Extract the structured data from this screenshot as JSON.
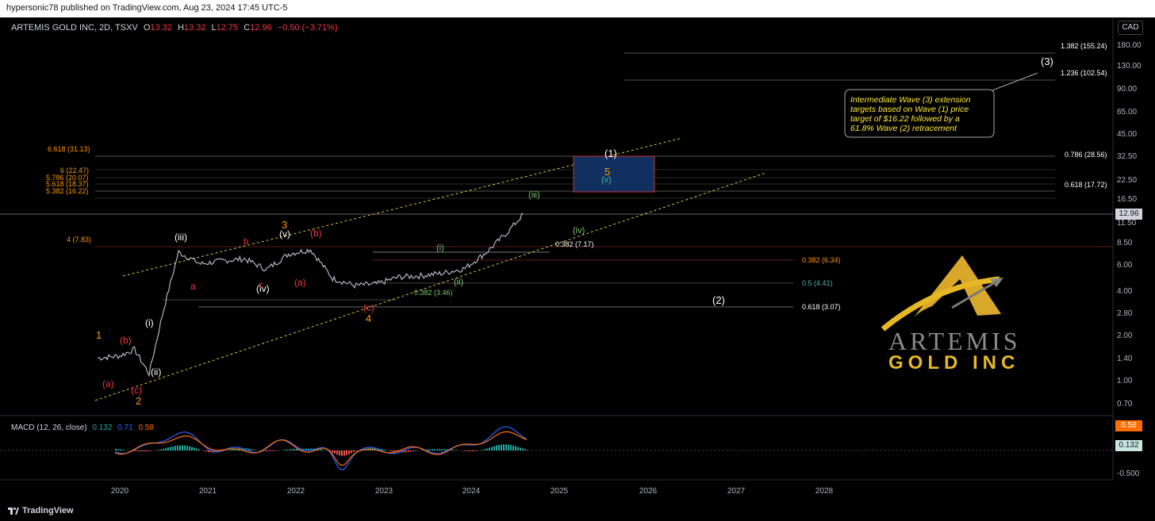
{
  "header": {
    "publisher": "hypersonic78 published on TradingView.com, Aug 23, 2024 17:45 UTC-5"
  },
  "legend": {
    "symbol": "ARTEMIS GOLD INC, 2D, TSXV",
    "o_label": "O",
    "o_value": "13.32",
    "h_label": "H",
    "h_value": "13.32",
    "l_label": "L",
    "l_value": "12.75",
    "c_label": "C",
    "c_value": "12.96",
    "change": "−0.50 (−3.71%)"
  },
  "currency_badge": "CAD",
  "price_badge": "12.96",
  "macd": {
    "label": "MACD (12, 26, close)",
    "v1": "0.132",
    "v2": "0.71",
    "v3": "0.58",
    "badge_signal": "0.58",
    "badge_hist": "0.132"
  },
  "footer": {
    "brand": "TradingView"
  },
  "logo": {
    "line1": "ARTEMIS",
    "line2": "GOLD INC"
  },
  "callout": {
    "text": [
      "Intermediate Wave (3) extension",
      "targets based on Wave (1) price",
      "target of $16.22 followed by a",
      "61.8% Wave (2) retracement"
    ]
  },
  "colors": {
    "white": "#ffffff",
    "orange": "#ff9800",
    "red": "#f23645",
    "green": "#7bc96f",
    "teal": "#4db6ac",
    "yellow": "#e0c040",
    "candles": "#b2b5be",
    "macd_blue": "#2962ff",
    "macd_orange": "#ff6d00"
  },
  "chart_data": {
    "type": "line",
    "title": "ARTEMIS GOLD INC, 2D, TSXV",
    "y_scale": "log",
    "ylim": [
      0.55,
      260
    ],
    "x_ticks": [
      "2020",
      "2021",
      "2022",
      "2023",
      "2024",
      "2025",
      "2026",
      "2027",
      "2028"
    ],
    "y_ticks": [
      "180.00",
      "130.00",
      "90.00",
      "65.00",
      "45.00",
      "32.50",
      "22.50",
      "16.50",
      "11.50",
      "8.50",
      "6.00",
      "4.00",
      "2.80",
      "2.00",
      "1.40",
      "1.00",
      "0.70"
    ],
    "macd_ticks": [
      "-0.500"
    ],
    "series": [
      {
        "name": "ARTEMIS GOLD INC",
        "x": [
          "2019-10",
          "2020-01",
          "2020-03",
          "2020-05",
          "2020-07",
          "2020-09",
          "2020-12",
          "2021-03",
          "2021-06",
          "2021-09",
          "2021-12",
          "2022-03",
          "2022-06",
          "2022-09",
          "2022-12",
          "2023-03",
          "2023-06",
          "2023-09",
          "2023-12",
          "2024-03",
          "2024-06",
          "2024-08"
        ],
        "y": [
          1.4,
          1.45,
          1.6,
          1.1,
          3.0,
          7.2,
          6.0,
          6.3,
          6.5,
          5.5,
          7.0,
          7.5,
          4.8,
          4.3,
          4.4,
          4.9,
          5.0,
          5.2,
          5.6,
          7.2,
          10.0,
          12.96
        ]
      }
    ],
    "fib_levels_left": [
      "6.618 (31.13)",
      "6 (22.47)",
      "5.786 (20.07)",
      "5.618 (18.37)",
      "5.382 (16.22)",
      "4 (7.83)"
    ],
    "fib_levels_right": [
      "1.382 (155.24)",
      "1.236 (102.54)",
      "0.786 (28.56)",
      "0.618 (17.72)",
      "0.382 (6.34)",
      "0.5 (4.41)",
      "0.618 (3.07)",
      "0.382 (7.17)",
      "0.382 (3.46)"
    ],
    "wave_labels": [
      "1",
      "2",
      "3",
      "4",
      "5",
      "(1)",
      "(2)",
      "(3)",
      "(i)",
      "(ii)",
      "(iii)",
      "(iv)",
      "(v)",
      "(a)",
      "(b)",
      "(c)",
      "a",
      "b",
      "c",
      "(i)",
      "(ii)",
      "(iii)",
      "(iv)",
      "(v)"
    ]
  }
}
